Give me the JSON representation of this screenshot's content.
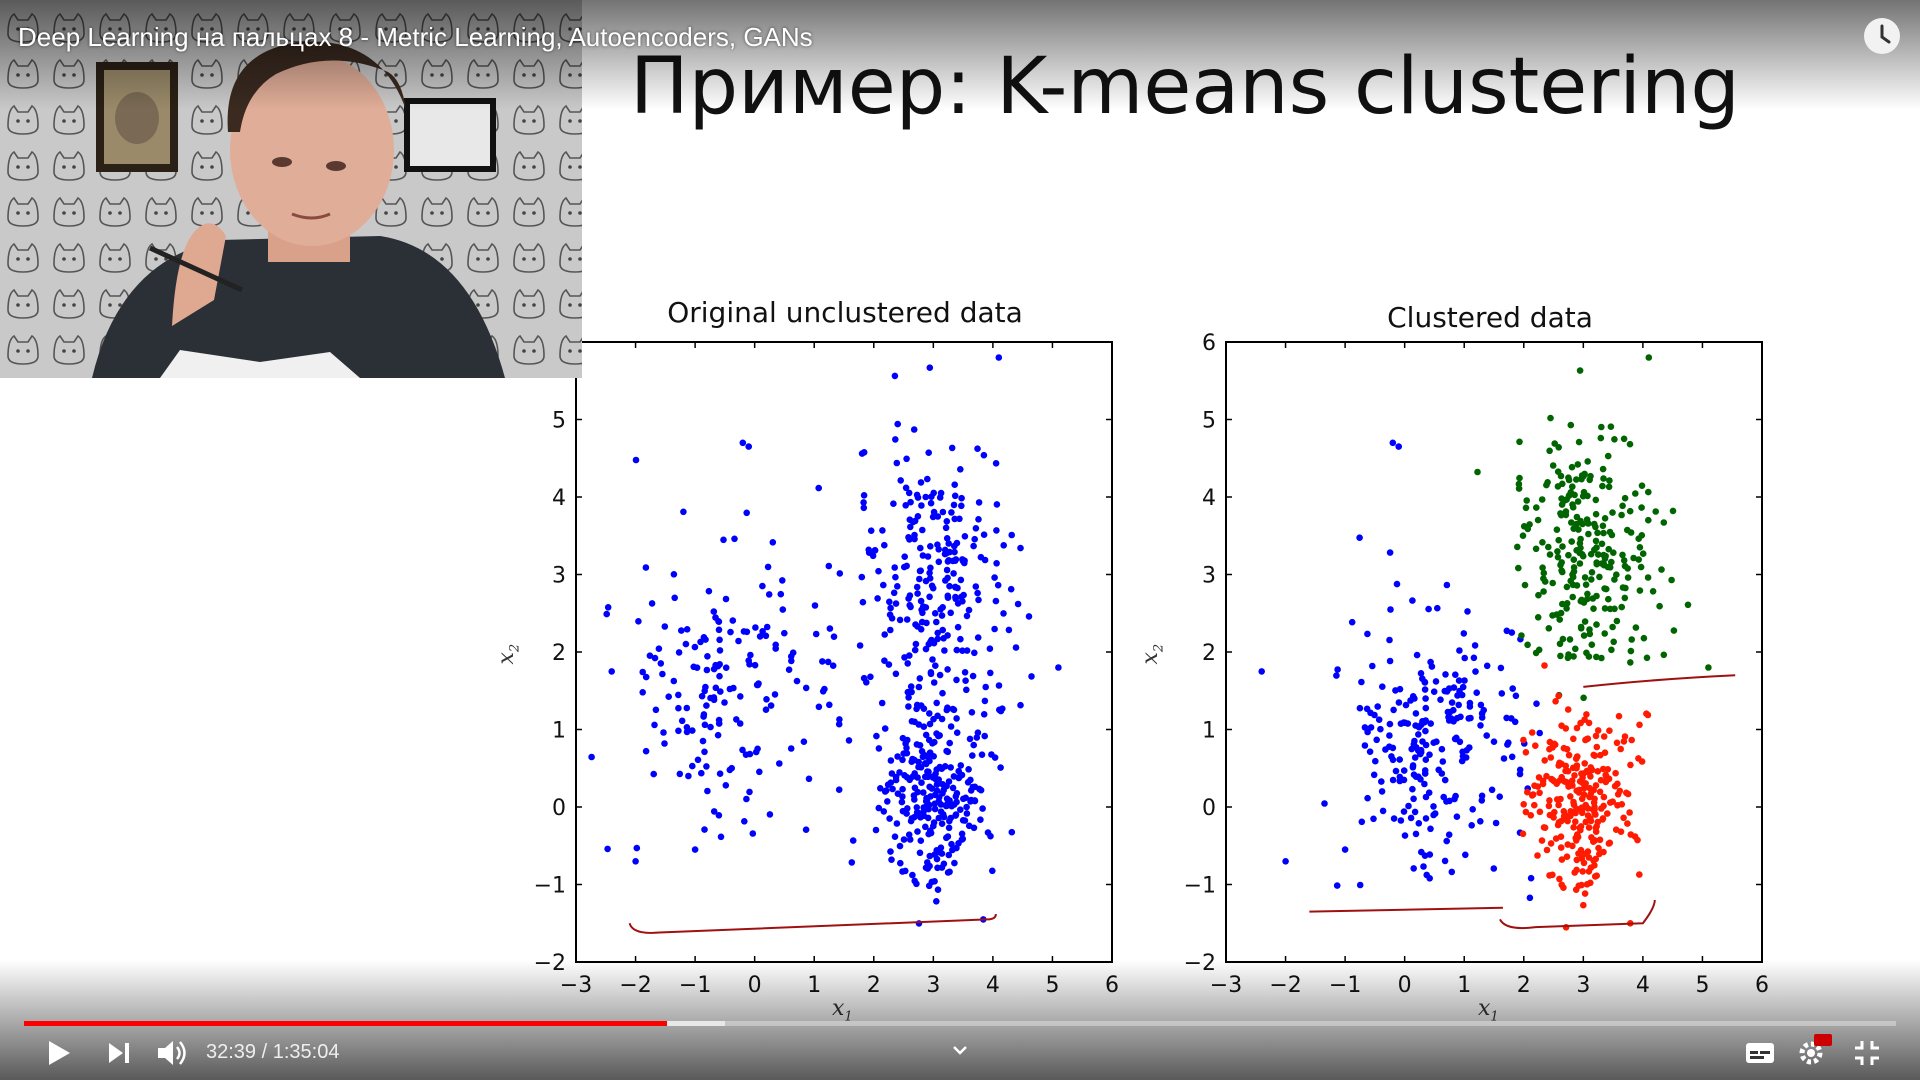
{
  "video": {
    "title": "Deep Learning на пальцах 8 - Metric Learning, Autoencoders, GANs",
    "time": {
      "current": "32:39",
      "duration": "1:35:04",
      "separator": " / "
    },
    "progress": {
      "played_fraction": 0.3434,
      "buffered_fraction": 0.3745
    },
    "colors": {
      "progress": "#ff0000",
      "hd_badge": "#cc0000"
    }
  },
  "slide": {
    "title": "Пример: K-means clustering",
    "charts": [
      {
        "title": "Original unclustered data",
        "xlabel": "x",
        "xlabel_sub": "1",
        "ylabel": "x",
        "ylabel_sub": "2"
      },
      {
        "title": "Clustered data",
        "xlabel": "x",
        "xlabel_sub": "1",
        "ylabel": "x",
        "ylabel_sub": "2"
      }
    ]
  },
  "chart_data": [
    {
      "type": "scatter",
      "title": "Original unclustered data",
      "xlabel": "x1",
      "ylabel": "x2",
      "xlim": [
        -3,
        6
      ],
      "ylim": [
        -2,
        5.8
      ],
      "xticks": [
        -3,
        -2,
        -1,
        0,
        1,
        2,
        3,
        4,
        5,
        6
      ],
      "yticks": [
        -2,
        -1,
        0,
        1,
        2,
        3,
        4,
        5
      ],
      "series": [
        {
          "color": "#0000ff",
          "clusters": [
            {
              "center": [
                -0.4,
                1.6
              ],
              "spread": [
                0.95,
                0.95
              ],
              "n": 180
            },
            {
              "center": [
                3.0,
                2.9
              ],
              "spread": [
                0.65,
                0.95
              ],
              "n": 260
            },
            {
              "center": [
                3.0,
                0.15
              ],
              "spread": [
                0.45,
                0.55
              ],
              "n": 260
            }
          ],
          "extra_points": [
            [
              -2.4,
              1.75
            ],
            [
              -0.2,
              4.7
            ],
            [
              -0.1,
              4.65
            ],
            [
              4.1,
              5.8
            ],
            [
              5.1,
              1.8
            ],
            [
              -2.0,
              -0.7
            ],
            [
              -1.0,
              -0.55
            ]
          ]
        }
      ],
      "annotations": {
        "brace_color": "#a01010"
      }
    },
    {
      "type": "scatter",
      "title": "Clustered data",
      "xlabel": "x1",
      "ylabel": "x2",
      "xlim": [
        -3,
        6
      ],
      "ylim": [
        -2,
        6
      ],
      "xticks": [
        -3,
        -2,
        -1,
        0,
        1,
        2,
        3,
        4,
        5,
        6
      ],
      "yticks": [
        -2,
        -1,
        0,
        1,
        2,
        3,
        4,
        5,
        6
      ],
      "series": [
        {
          "color": "#0000ff",
          "clusters": [
            {
              "center": [
                0.5,
                0.9
              ],
              "spread": [
                0.75,
                0.85
              ],
              "n": 240
            }
          ],
          "extra_points": [
            [
              -2.4,
              1.75
            ],
            [
              -0.2,
              4.7
            ],
            [
              -0.1,
              4.65
            ],
            [
              -2.0,
              -0.7
            ],
            [
              -1.0,
              -0.55
            ]
          ]
        },
        {
          "color": "#006400",
          "clusters": [
            {
              "center": [
                3.0,
                3.3
              ],
              "spread": [
                0.6,
                0.8
              ],
              "n": 260
            }
          ],
          "extra_points": [
            [
              4.1,
              5.8
            ],
            [
              5.1,
              1.8
            ]
          ]
        },
        {
          "color": "#ff1a00",
          "clusters": [
            {
              "center": [
                2.95,
                0.1
              ],
              "spread": [
                0.45,
                0.55
              ],
              "n": 260
            }
          ]
        }
      ],
      "annotations": {
        "brace_color": "#a01010"
      }
    }
  ]
}
